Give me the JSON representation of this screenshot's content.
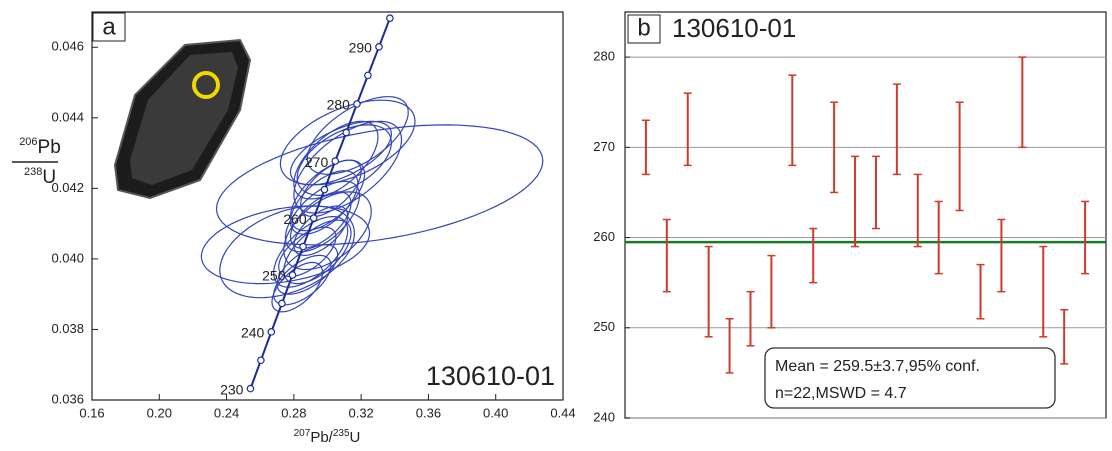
{
  "chart_data": [
    {
      "type": "concordia",
      "panel": "a",
      "sample": "130610-01",
      "xlabel": [
        "207",
        "Pb/",
        "235",
        "U"
      ],
      "ylabel": {
        "numerator": [
          "206",
          "Pb"
        ],
        "denominator": [
          "238",
          "U"
        ]
      },
      "xlim": [
        0.16,
        0.44
      ],
      "ylim": [
        0.036,
        0.047
      ],
      "xticks": [
        0.16,
        {
          "value": 0.2,
          "label": "0.20"
        },
        0.24,
        0.28,
        0.32,
        0.36,
        {
          "value": 0.4,
          "label": "0.40"
        },
        0.44
      ],
      "yticks": [
        0.036,
        0.038,
        {
          "value": 0.04,
          "label": "0.040"
        },
        0.042,
        0.044,
        0.046
      ],
      "concordia": {
        "color": "#1a2a9a",
        "labels": [
          230,
          null,
          240,
          null,
          250,
          null,
          260,
          null,
          270,
          null,
          280,
          null,
          290,
          null
        ],
        "x": [
          0.2542,
          0.2604,
          0.2666,
          0.2729,
          0.2792,
          0.2855,
          0.2918,
          0.2982,
          0.3046,
          0.3111,
          0.3175,
          0.324,
          0.3306,
          0.3371
        ],
        "y": [
          0.036323,
          0.037127,
          0.037932,
          0.038737,
          0.039543,
          0.04035,
          0.041157,
          0.041965,
          0.042773,
          0.043582,
          0.044392,
          0.045203,
          0.046013,
          0.046825
        ]
      },
      "ellipse_color": "#3344bb",
      "ellipses": [
        {
          "x": 0.331,
          "y": 0.0421,
          "sx": 0.097,
          "sy": 0.0017,
          "rho": 0.4
        },
        {
          "x": 0.275,
          "y": 0.0404,
          "sx": 0.05,
          "sy": 0.0011,
          "rho": 0.3
        },
        {
          "x": 0.308,
          "y": 0.043,
          "sx": 0.03,
          "sy": 0.0009,
          "rho": 0.6
        },
        {
          "x": 0.29,
          "y": 0.0402,
          "sx": 0.022,
          "sy": 0.001,
          "rho": 0.6
        },
        {
          "x": 0.282,
          "y": 0.0392,
          "sx": 0.015,
          "sy": 0.0007,
          "rho": 0.6
        },
        {
          "x": 0.288,
          "y": 0.0397,
          "sx": 0.018,
          "sy": 0.0007,
          "rho": 0.6
        },
        {
          "x": 0.294,
          "y": 0.0402,
          "sx": 0.02,
          "sy": 0.0009,
          "rho": 0.6
        },
        {
          "x": 0.312,
          "y": 0.0433,
          "sx": 0.04,
          "sy": 0.0012,
          "rho": 0.5
        },
        {
          "x": 0.296,
          "y": 0.0408,
          "sx": 0.016,
          "sy": 0.0007,
          "rho": 0.6
        },
        {
          "x": 0.305,
          "y": 0.0428,
          "sx": 0.025,
          "sy": 0.0011,
          "rho": 0.6
        },
        {
          "x": 0.3,
          "y": 0.0418,
          "sx": 0.022,
          "sy": 0.001,
          "rho": 0.6
        },
        {
          "x": 0.302,
          "y": 0.042,
          "sx": 0.018,
          "sy": 0.0008,
          "rho": 0.6
        },
        {
          "x": 0.31,
          "y": 0.0428,
          "sx": 0.028,
          "sy": 0.001,
          "rho": 0.5
        },
        {
          "x": 0.298,
          "y": 0.0416,
          "sx": 0.02,
          "sy": 0.0009,
          "rho": 0.6
        },
        {
          "x": 0.296,
          "y": 0.0411,
          "sx": 0.018,
          "sy": 0.0008,
          "rho": 0.6
        },
        {
          "x": 0.312,
          "y": 0.0426,
          "sx": 0.032,
          "sy": 0.0013,
          "rho": 0.6
        },
        {
          "x": 0.288,
          "y": 0.0402,
          "sx": 0.017,
          "sy": 0.0007,
          "rho": 0.6
        },
        {
          "x": 0.3,
          "y": 0.0408,
          "sx": 0.026,
          "sy": 0.0011,
          "rho": 0.5
        },
        {
          "x": 0.318,
          "y": 0.0435,
          "sx": 0.03,
          "sy": 0.0011,
          "rho": 0.6
        },
        {
          "x": 0.276,
          "y": 0.0402,
          "sx": 0.04,
          "sy": 0.0013,
          "rho": 0.4
        },
        {
          "x": 0.285,
          "y": 0.0394,
          "sx": 0.017,
          "sy": 0.0007,
          "rho": 0.6
        },
        {
          "x": 0.297,
          "y": 0.0412,
          "sx": 0.022,
          "sy": 0.001,
          "rho": 0.6
        }
      ]
    },
    {
      "type": "errorbar",
      "panel": "b",
      "title": "130610-01",
      "xlim": [
        0,
        23
      ],
      "ylim": [
        240,
        285
      ],
      "yticks": [
        240,
        250,
        260,
        270,
        280
      ],
      "grid": true,
      "series": [
        {
          "color": "#d03a2a",
          "x": [
            1,
            2,
            3,
            4,
            5,
            6,
            7,
            8,
            9,
            10,
            11,
            12,
            13,
            14,
            15,
            16,
            17,
            18,
            19,
            20,
            21,
            22
          ],
          "values": [
            270,
            258,
            272,
            254,
            248,
            251,
            254,
            273,
            258,
            270,
            264,
            265,
            272,
            263,
            260,
            269,
            254,
            258,
            275,
            254,
            249,
            260
          ],
          "errors": [
            3,
            4,
            4,
            5,
            3,
            3,
            4,
            5,
            3,
            5,
            5,
            4,
            5,
            4,
            4,
            6,
            3,
            4,
            5,
            5,
            3,
            4
          ]
        }
      ],
      "mean": 259.5,
      "mean_color": "#1a7a2a",
      "annotation": [
        "Mean = 259.5±3.7,95% conf.",
        "n=22,MSWD = 4.7"
      ]
    }
  ]
}
